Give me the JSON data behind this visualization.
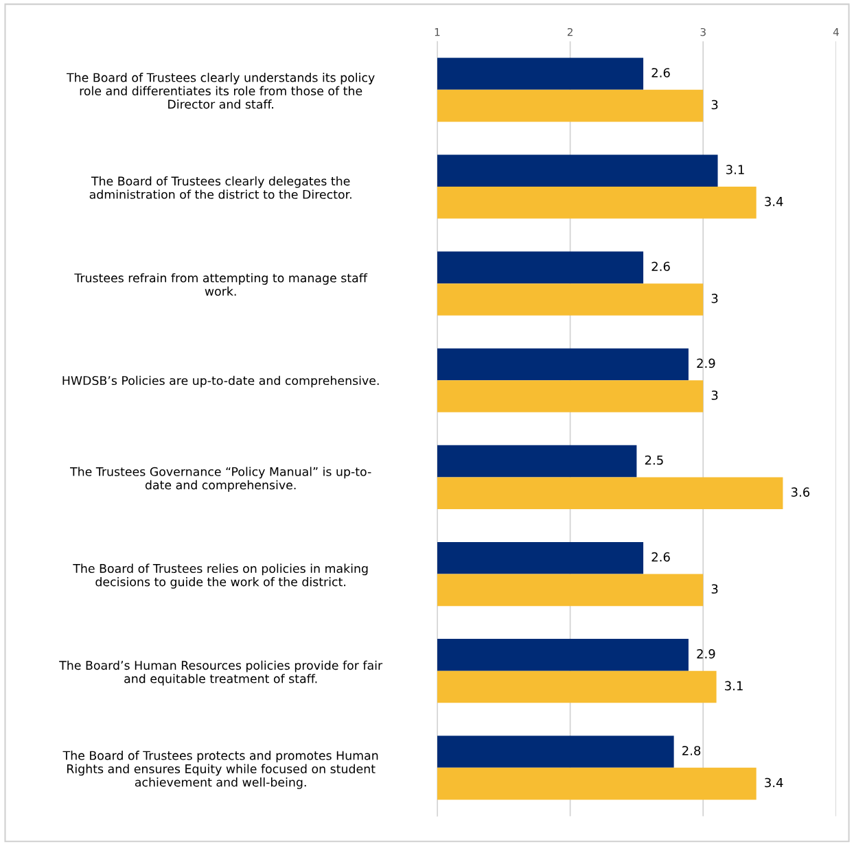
{
  "chart_data": {
    "type": "bar",
    "orientation": "horizontal",
    "categories": [
      "The Board of Trustees clearly understands its policy\nrole and differentiates its role from those of the\nDirector and staff.",
      "The Board of Trustees clearly delegates the\nadministration of the district to the Director.",
      "Trustees refrain from attempting to manage staff\nwork.",
      "HWDSB’s Policies are up-to-date and comprehensive.",
      "The Trustees Governance “Policy Manual” is up-to-\ndate and comprehensive.",
      "The Board of Trustees relies on policies in making\ndecisions to guide the work of the district.",
      "The Board’s Human Resources policies provide for fair\nand equitable treatment of staff.",
      "The Board of Trustees protects and promotes Human\nRights and ensures Equity while focused on student\nachievement and well-being."
    ],
    "series": [
      {
        "color": "#002b76",
        "values": [
          2.55,
          3.11,
          2.55,
          2.89,
          2.5,
          2.55,
          2.89,
          2.78
        ],
        "value_labels": [
          "2.6",
          "3.1",
          "2.6",
          "2.9",
          "2.5",
          "2.6",
          "2.9",
          "2.8"
        ]
      },
      {
        "color": "#f7bd32",
        "values": [
          3.0,
          3.4,
          3.0,
          3.0,
          3.6,
          3.0,
          3.1,
          3.4
        ],
        "value_labels": [
          "3",
          "3.4",
          "3",
          "3",
          "3.6",
          "3",
          "3.1",
          "3.4"
        ]
      }
    ],
    "xlim": [
      1,
      4
    ],
    "xticks": [
      1,
      2,
      3,
      4
    ],
    "grid": "x",
    "legend": false
  }
}
